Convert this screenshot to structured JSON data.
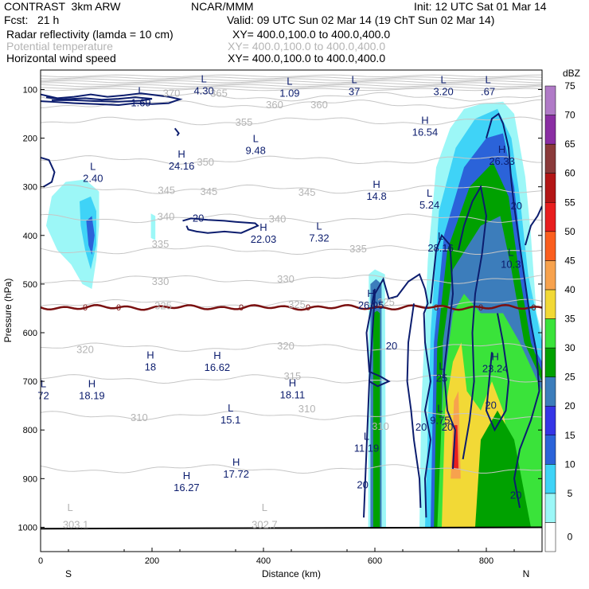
{
  "header": {
    "model": "CONTRAST  3km ARW",
    "org": "NCAR/MMM",
    "init": "Init: 12 UTC Sat 01 Mar 14",
    "fcst": "Fcst:   21 h",
    "valid": "Valid: 09 UTC Sun 02 Mar 14 (19 ChT Sun 02 Mar 14)",
    "field1": "Radar reflectivity (lamda = 10 cm)",
    "field1_xy": "XY= 400.0,100.0 to 400.0,400.0",
    "field2": "Potential temperature",
    "field2_xy": "XY= 400.0,100.0 to 400.0,400.0",
    "field3": "Horizontal wind speed",
    "field3_xy": "XY= 400.0,100.0 to 400.0,400.0"
  },
  "chart_data": {
    "type": "heatmap",
    "xlabel": "Distance (km)",
    "ylabel": "Pressure (hPa)",
    "xlim": [
      0,
      900
    ],
    "ylim": [
      1050,
      60
    ],
    "x_ticks": [
      0,
      200,
      400,
      600,
      800
    ],
    "y_ticks": [
      100,
      200,
      300,
      400,
      500,
      600,
      700,
      800,
      900,
      1000
    ],
    "x_end_labels": {
      "left": "S",
      "right": "N"
    },
    "colorbar": {
      "unit": "dBZ",
      "levels": [
        0,
        5,
        10,
        15,
        20,
        25,
        30,
        35,
        40,
        45,
        50,
        55,
        60,
        65,
        70,
        75
      ],
      "colors": [
        "#ffffff",
        "#9cf7f7",
        "#3fd3f7",
        "#2b63d9",
        "#3535e6",
        "#3c7dbb",
        "#00a100",
        "#3ae33a",
        "#f2d936",
        "#f7a24d",
        "#fb5e1e",
        "#e81e1e",
        "#b31616",
        "#8a3a3a",
        "#8a2ea3",
        "#b07ac7"
      ]
    },
    "theta_contours": [
      {
        "label": "365",
        "p": 115
      },
      {
        "label": "360",
        "p": 130
      },
      {
        "label": "355",
        "p": 165
      },
      {
        "label": "350",
        "p": 245
      },
      {
        "label": "345",
        "p": 305
      },
      {
        "label": "340",
        "p": 365
      },
      {
        "label": "335",
        "p": 430
      },
      {
        "label": "330",
        "p": 490
      },
      {
        "label": "325",
        "p": 540
      },
      {
        "label": "320",
        "p": 630
      },
      {
        "label": "315",
        "p": 695
      },
      {
        "label": "310",
        "p": 770
      },
      {
        "label": "305",
        "p": 880
      }
    ],
    "freezing_level": {
      "label": "0",
      "p": 548
    },
    "theta_labels": [
      {
        "text": "370",
        "x": 235,
        "p": 108
      },
      {
        "text": "365",
        "x": 320,
        "p": 108
      },
      {
        "text": "360",
        "x": 420,
        "p": 132
      },
      {
        "text": "360",
        "x": 500,
        "p": 132
      },
      {
        "text": "355",
        "x": 365,
        "p": 168
      },
      {
        "text": "350",
        "x": 296,
        "p": 250
      },
      {
        "text": "345",
        "x": 226,
        "p": 308
      },
      {
        "text": "345",
        "x": 302,
        "p": 310
      },
      {
        "text": "345",
        "x": 478,
        "p": 312
      },
      {
        "text": "340",
        "x": 225,
        "p": 362
      },
      {
        "text": "340",
        "x": 425,
        "p": 367
      },
      {
        "text": "335",
        "x": 215,
        "p": 418
      },
      {
        "text": "335",
        "x": 570,
        "p": 428
      },
      {
        "text": "330",
        "x": 215,
        "p": 495
      },
      {
        "text": "330",
        "x": 440,
        "p": 490
      },
      {
        "text": "325",
        "x": 220,
        "p": 545
      },
      {
        "text": "325",
        "x": 460,
        "p": 543
      },
      {
        "text": "325",
        "x": 620,
        "p": 538
      },
      {
        "text": "320",
        "x": 80,
        "p": 635
      },
      {
        "text": "320",
        "x": 440,
        "p": 628
      },
      {
        "text": "315",
        "x": 452,
        "p": 690
      },
      {
        "text": "310",
        "x": 177,
        "p": 775
      },
      {
        "text": "310",
        "x": 478,
        "p": 757
      },
      {
        "text": "310",
        "x": 610,
        "p": 793
      },
      {
        "text": "L",
        "x": 53,
        "p": 960
      },
      {
        "text": "303.1",
        "x": 63,
        "p": 995
      },
      {
        "text": "L",
        "x": 402,
        "p": 960
      },
      {
        "text": "302.7",
        "x": 402,
        "p": 995
      }
    ],
    "wind_extrema": [
      {
        "t": "L",
        "v": "1.69",
        "x": 180,
        "p": 120
      },
      {
        "t": "L",
        "v": "4.30",
        "x": 293,
        "p": 95
      },
      {
        "t": "L",
        "v": "1.09",
        "x": 447,
        "p": 100
      },
      {
        "t": "L",
        "v": "37",
        "x": 563,
        "p": 97
      },
      {
        "t": "L",
        "v": "3.20",
        "x": 723,
        "p": 97
      },
      {
        "t": "L",
        "v": ".67",
        "x": 803,
        "p": 97
      },
      {
        "t": "H",
        "v": "16.54",
        "x": 690,
        "p": 180
      },
      {
        "t": "L",
        "v": "9.48",
        "x": 386,
        "p": 218
      },
      {
        "t": "H",
        "v": "24.16",
        "x": 253,
        "p": 250
      },
      {
        "t": "L",
        "v": "2.40",
        "x": 94,
        "p": 275
      },
      {
        "t": "H",
        "v": "14.8",
        "x": 603,
        "p": 312
      },
      {
        "t": "L",
        "v": "5.24",
        "x": 698,
        "p": 330
      },
      {
        "t": "H",
        "v": "26.33",
        "x": 828,
        "p": 240
      },
      {
        "t": "H",
        "v": "22.03",
        "x": 400,
        "p": 400
      },
      {
        "t": "L",
        "v": "7.32",
        "x": 500,
        "p": 398
      },
      {
        "t": "L",
        "v": "28.16",
        "x": 718,
        "p": 418
      },
      {
        "t": "L",
        "v": "10.3",
        "x": 844,
        "p": 452
      },
      {
        "t": "H",
        "v": "26.95",
        "x": 593,
        "p": 536
      },
      {
        "t": "H",
        "v": "18",
        "x": 197,
        "p": 663
      },
      {
        "t": "H",
        "v": "16.62",
        "x": 317,
        "p": 664
      },
      {
        "t": "H",
        "v": "18.19",
        "x": 92,
        "p": 722
      },
      {
        "t": "H",
        "v": "18.11",
        "x": 452,
        "p": 720
      },
      {
        "t": "L",
        "v": "72",
        "x": 5,
        "p": 722
      },
      {
        "t": "L",
        "v": "25",
        "x": 720,
        "p": 686
      },
      {
        "t": "H",
        "v": "23.24",
        "x": 816,
        "p": 666
      },
      {
        "t": "L",
        "v": "15.1",
        "x": 341,
        "p": 772
      },
      {
        "t": "L",
        "v": "9.75",
        "x": 717,
        "p": 773
      },
      {
        "t": "L",
        "v": "11.19",
        "x": 585,
        "p": 830
      },
      {
        "t": "H",
        "v": "17.72",
        "x": 351,
        "p": 883
      },
      {
        "t": "H",
        "v": "16.27",
        "x": 262,
        "p": 911
      }
    ],
    "wind_contour_labels": [
      {
        "text": "20",
        "x": 283,
        "p": 365
      },
      {
        "text": "20",
        "x": 630,
        "p": 628
      },
      {
        "text": "20",
        "x": 854,
        "p": 340
      },
      {
        "text": "20",
        "x": 808,
        "p": 750
      },
      {
        "text": "20",
        "x": 683,
        "p": 795
      },
      {
        "text": "20",
        "x": 730,
        "p": 795
      },
      {
        "text": "20",
        "x": 578,
        "p": 913
      },
      {
        "text": "20",
        "x": 853,
        "p": 935
      }
    ]
  }
}
